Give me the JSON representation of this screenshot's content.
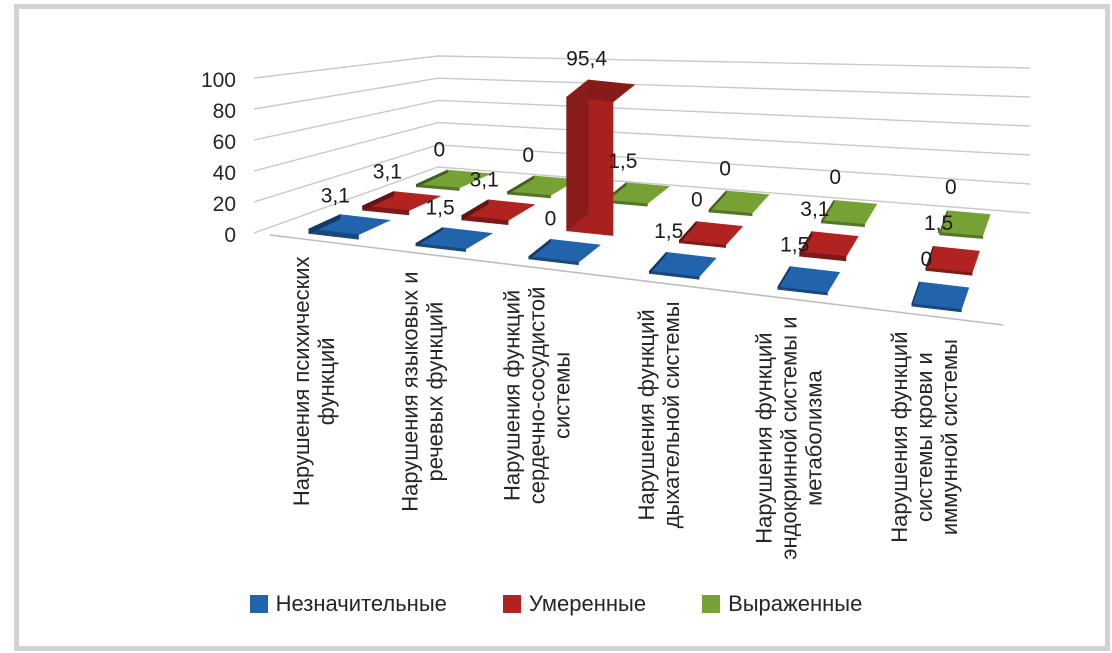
{
  "figure": {
    "background": "#ffffff",
    "border_color": "#d2d2d2",
    "gridline_color": "#c9c9c9",
    "floor_edge_color": "#bdbdbd",
    "text_color": "#262626",
    "data_label_color": "#1a1a1a"
  },
  "chart_data": {
    "type": "bar",
    "projection": "3d-column",
    "title": "",
    "xlabel": "",
    "ylabel": "",
    "ylim": [
      0,
      100
    ],
    "y_ticks": [
      0,
      20,
      40,
      60,
      80,
      100
    ],
    "grid": true,
    "legend_position": "bottom",
    "decimal_separator": ",",
    "categories": [
      "Нарушения психических функций",
      "Нарушения языковых и речевых функций",
      "Нарушения функций сердечно-сосудистой системы",
      "Нарушения функций дыхательной системы",
      "Нарушения функций эндокринной системы и метаболизма",
      "Нарушения функций системы крови и иммунной системы"
    ],
    "category_lines": [
      [
        "Нарушения психических",
        "функций"
      ],
      [
        "Нарушения языковых и",
        "речевых функций"
      ],
      [
        "Нарушения функций",
        "сердечно-сосудистой",
        "системы"
      ],
      [
        "Нарушения функций",
        "дыхательной системы"
      ],
      [
        "Нарушения функций",
        "эндокринной системы и",
        "метаболизма"
      ],
      [
        "Нарушения функций",
        "системы крови и",
        "иммунной системы"
      ]
    ],
    "series": [
      {
        "name": "Незначительные",
        "color": "#2164AC",
        "values": [
          3.1,
          1.5,
          0,
          1.5,
          1.5,
          0
        ]
      },
      {
        "name": "Умеренные",
        "color": "#B02320",
        "values": [
          3.1,
          3.1,
          95.4,
          0,
          3.1,
          1.5
        ]
      },
      {
        "name": "Выраженные",
        "color": "#76A235",
        "values": [
          0,
          0,
          1.5,
          0,
          0,
          0
        ]
      }
    ],
    "value_labels": [
      [
        "3,1",
        "1,5",
        "0",
        "1,5",
        "1,5",
        "0"
      ],
      [
        "3,1",
        "3,1",
        "95,4",
        "0",
        "3,1",
        "1,5"
      ],
      [
        "0",
        "0",
        "1,5",
        "0",
        "0",
        "0"
      ]
    ]
  }
}
